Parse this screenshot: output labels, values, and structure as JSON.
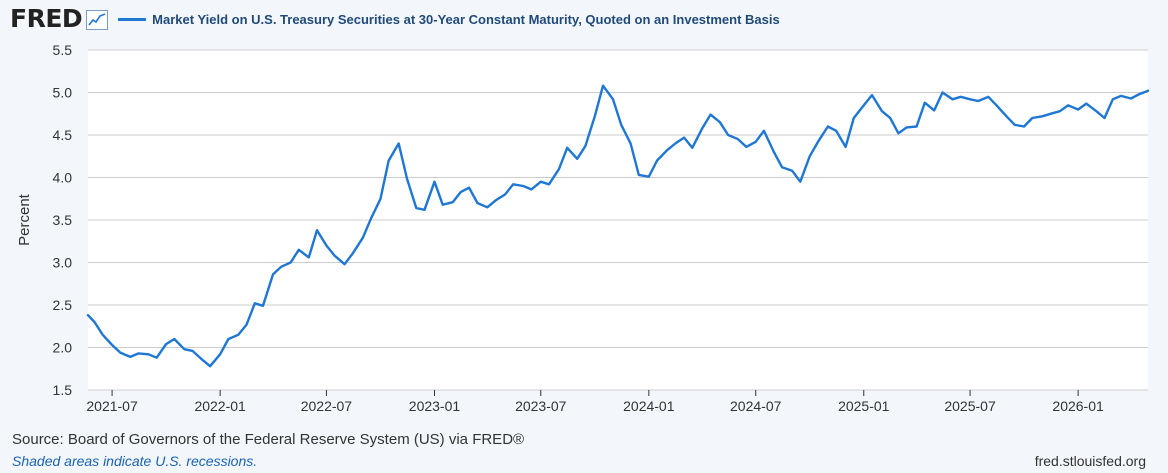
{
  "header": {
    "logo_text": "FRED",
    "legend_label": "Market Yield on U.S. Treasury Securities at 30-Year Constant Maturity, Quoted on an Investment Basis"
  },
  "footer": {
    "source": "Source: Board of Governors of the Federal Reserve System (US) via FRED®",
    "note": "Shaded areas indicate U.S. recessions.",
    "url": "fred.stlouisfed.org"
  },
  "colors": {
    "series": "#1f77d4",
    "plot_background": "#ffffff",
    "grid": "#cccccc"
  },
  "chart_data": {
    "type": "line",
    "title": "",
    "xlabel": "",
    "ylabel": "Percent",
    "ylim": [
      1.5,
      5.5
    ],
    "yticks": [
      1.5,
      2.0,
      2.5,
      3.0,
      3.5,
      4.0,
      4.5,
      5.0,
      5.5
    ],
    "ytick_labels": [
      "1.5",
      "2.0",
      "2.5",
      "3.0",
      "3.5",
      "4.0",
      "4.5",
      "5.0",
      "5.5"
    ],
    "xlim": [
      "2021-05-21",
      "2026-04-30"
    ],
    "xticks": [
      "2021-07-01",
      "2022-01-01",
      "2022-07-01",
      "2023-01-01",
      "2023-07-01",
      "2024-01-01",
      "2024-07-01",
      "2025-01-01",
      "2025-07-01",
      "2026-01-01"
    ],
    "xtick_labels": [
      "2021-07",
      "2022-01",
      "2022-07",
      "2023-01",
      "2023-07",
      "2024-01",
      "2024-07",
      "2025-01",
      "2025-07",
      "2026-01"
    ],
    "grid": true,
    "legend": "top",
    "series": [
      {
        "name": "Market Yield on U.S. Treasury Securities at 30-Year Constant Maturity, Quoted on an Investment Basis",
        "x": [
          "2021-05-21",
          "2021-06-01",
          "2021-06-15",
          "2021-07-01",
          "2021-07-15",
          "2021-08-01",
          "2021-08-15",
          "2021-09-01",
          "2021-09-15",
          "2021-10-01",
          "2021-10-15",
          "2021-11-01",
          "2021-11-15",
          "2021-12-01",
          "2021-12-15",
          "2022-01-01",
          "2022-01-15",
          "2022-02-01",
          "2022-02-15",
          "2022-03-01",
          "2022-03-15",
          "2022-04-01",
          "2022-04-15",
          "2022-05-01",
          "2022-05-15",
          "2022-06-01",
          "2022-06-15",
          "2022-07-01",
          "2022-07-15",
          "2022-08-01",
          "2022-08-15",
          "2022-09-01",
          "2022-09-15",
          "2022-10-01",
          "2022-10-15",
          "2022-11-01",
          "2022-11-15",
          "2022-12-01",
          "2022-12-15",
          "2023-01-01",
          "2023-01-15",
          "2023-02-01",
          "2023-02-15",
          "2023-03-01",
          "2023-03-15",
          "2023-04-01",
          "2023-04-15",
          "2023-05-01",
          "2023-05-15",
          "2023-06-01",
          "2023-06-15",
          "2023-07-01",
          "2023-07-15",
          "2023-08-01",
          "2023-08-15",
          "2023-09-01",
          "2023-09-15",
          "2023-10-01",
          "2023-10-15",
          "2023-11-01",
          "2023-11-15",
          "2023-12-01",
          "2023-12-15",
          "2024-01-01",
          "2024-01-15",
          "2024-02-01",
          "2024-02-15",
          "2024-03-01",
          "2024-03-15",
          "2024-04-01",
          "2024-04-15",
          "2024-05-01",
          "2024-05-15",
          "2024-06-01",
          "2024-06-15",
          "2024-07-01",
          "2024-07-15",
          "2024-08-01",
          "2024-08-15",
          "2024-09-01",
          "2024-09-15",
          "2024-10-01",
          "2024-10-15",
          "2024-11-01",
          "2024-11-15",
          "2024-12-01",
          "2024-12-15",
          "2025-01-01",
          "2025-01-15",
          "2025-02-01",
          "2025-02-15",
          "2025-03-01",
          "2025-03-15",
          "2025-04-01",
          "2025-04-15",
          "2025-05-01",
          "2025-05-15",
          "2025-06-01",
          "2025-06-15",
          "2025-07-01",
          "2025-07-15",
          "2025-08-01",
          "2025-08-15",
          "2025-09-01",
          "2025-09-15",
          "2025-10-01",
          "2025-10-15",
          "2025-11-01",
          "2025-11-15",
          "2025-12-01",
          "2025-12-15",
          "2026-01-01",
          "2026-01-15",
          "2026-02-01",
          "2026-02-15",
          "2026-03-01",
          "2026-03-15",
          "2026-04-01",
          "2026-04-15",
          "2026-04-30"
        ],
        "values": [
          2.38,
          2.3,
          2.15,
          2.03,
          1.94,
          1.89,
          1.93,
          1.92,
          1.88,
          2.04,
          2.1,
          1.98,
          1.96,
          1.86,
          1.78,
          1.92,
          2.1,
          2.15,
          2.27,
          2.52,
          2.49,
          2.86,
          2.95,
          3.0,
          3.15,
          3.06,
          3.38,
          3.2,
          3.08,
          2.98,
          3.11,
          3.29,
          3.52,
          3.75,
          4.2,
          4.4,
          3.99,
          3.64,
          3.62,
          3.95,
          3.68,
          3.71,
          3.83,
          3.88,
          3.7,
          3.65,
          3.73,
          3.8,
          3.92,
          3.9,
          3.86,
          3.95,
          3.92,
          4.1,
          4.35,
          4.22,
          4.37,
          4.72,
          5.08,
          4.92,
          4.62,
          4.4,
          4.03,
          4.01,
          4.2,
          4.32,
          4.4,
          4.47,
          4.35,
          4.58,
          4.74,
          4.65,
          4.5,
          4.45,
          4.36,
          4.42,
          4.55,
          4.3,
          4.12,
          4.08,
          3.95,
          4.25,
          4.42,
          4.6,
          4.55,
          4.36,
          4.7,
          4.85,
          4.97,
          4.78,
          4.7,
          4.52,
          4.59,
          4.6,
          4.88,
          4.79,
          5.0,
          4.92,
          4.95,
          4.92,
          4.9,
          4.95,
          4.85,
          4.72,
          4.62,
          4.6,
          4.7,
          4.72,
          4.75,
          4.78,
          4.85,
          4.8,
          4.87,
          4.78,
          4.7,
          4.92,
          4.96,
          4.93,
          4.98,
          5.02
        ]
      }
    ]
  }
}
